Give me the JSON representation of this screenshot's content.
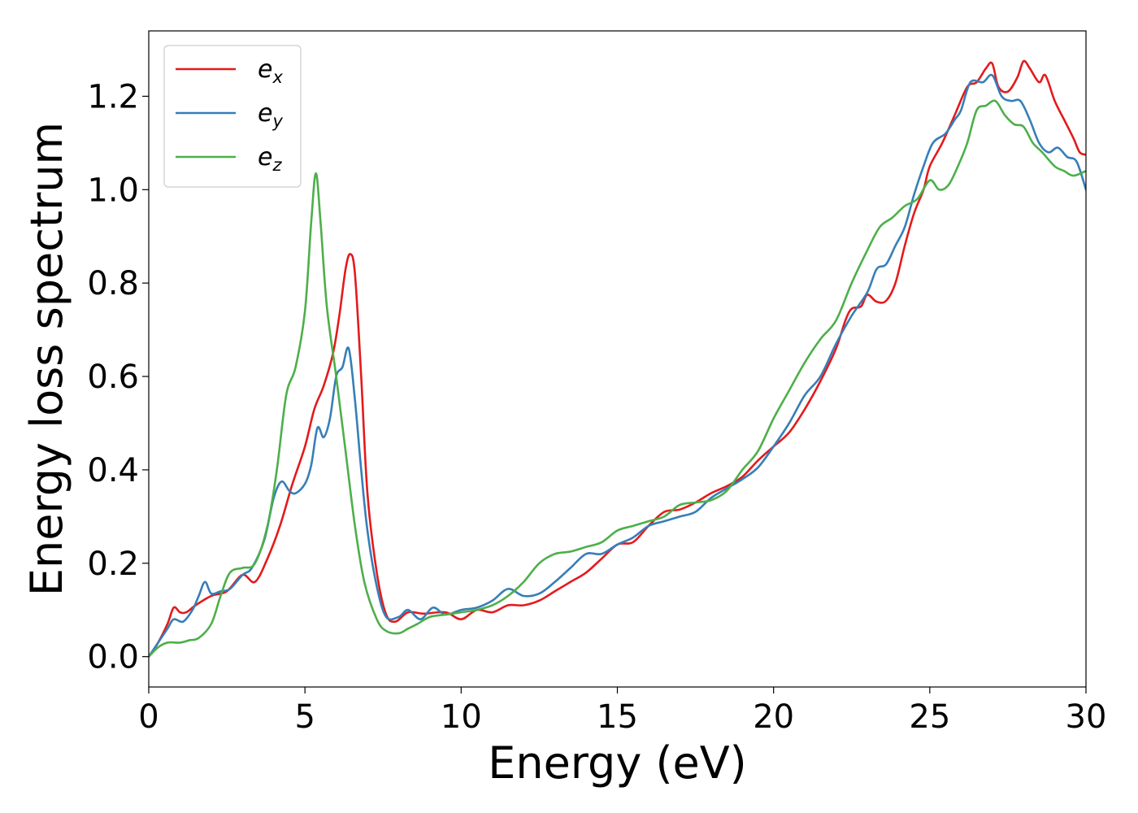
{
  "chart_data": {
    "type": "line",
    "xlabel": "Energy (eV)",
    "ylabel": "Energy loss spectrum",
    "xlim": [
      0,
      30
    ],
    "ylim": [
      -0.065,
      1.34
    ],
    "xticks": [
      0,
      5,
      10,
      15,
      20,
      25,
      30
    ],
    "xtick_labels": [
      "0",
      "5",
      "10",
      "15",
      "20",
      "25",
      "30"
    ],
    "yticks": [
      0.0,
      0.2,
      0.4,
      0.6,
      0.8,
      1.0,
      1.2
    ],
    "ytick_labels": [
      "0.0",
      "0.2",
      "0.4",
      "0.6",
      "0.8",
      "1.0",
      "1.2"
    ],
    "grid": false,
    "legend_position": "top-left",
    "series": [
      {
        "name": "e_x",
        "label_base": "e",
        "label_sub": "x",
        "color": "#e41a1c",
        "points": [
          [
            0,
            0
          ],
          [
            0.3,
            0.03
          ],
          [
            0.6,
            0.07
          ],
          [
            0.8,
            0.105
          ],
          [
            1.0,
            0.095
          ],
          [
            1.2,
            0.095
          ],
          [
            1.5,
            0.11
          ],
          [
            2.0,
            0.13
          ],
          [
            2.5,
            0.14
          ],
          [
            3.0,
            0.175
          ],
          [
            3.4,
            0.16
          ],
          [
            3.8,
            0.21
          ],
          [
            4.2,
            0.28
          ],
          [
            4.6,
            0.37
          ],
          [
            5.0,
            0.45
          ],
          [
            5.3,
            0.53
          ],
          [
            5.6,
            0.58
          ],
          [
            5.9,
            0.65
          ],
          [
            6.1,
            0.73
          ],
          [
            6.3,
            0.83
          ],
          [
            6.45,
            0.862
          ],
          [
            6.6,
            0.82
          ],
          [
            6.8,
            0.6
          ],
          [
            7.0,
            0.35
          ],
          [
            7.3,
            0.18
          ],
          [
            7.6,
            0.09
          ],
          [
            7.9,
            0.075
          ],
          [
            8.3,
            0.095
          ],
          [
            8.8,
            0.092
          ],
          [
            9.5,
            0.095
          ],
          [
            10.0,
            0.08
          ],
          [
            10.5,
            0.1
          ],
          [
            11,
            0.095
          ],
          [
            11.5,
            0.11
          ],
          [
            12,
            0.11
          ],
          [
            12.5,
            0.12
          ],
          [
            13,
            0.14
          ],
          [
            13.5,
            0.16
          ],
          [
            14,
            0.18
          ],
          [
            14.5,
            0.21
          ],
          [
            15,
            0.24
          ],
          [
            15.5,
            0.245
          ],
          [
            16,
            0.28
          ],
          [
            16.5,
            0.31
          ],
          [
            17,
            0.315
          ],
          [
            17.5,
            0.33
          ],
          [
            18,
            0.35
          ],
          [
            18.5,
            0.365
          ],
          [
            19,
            0.385
          ],
          [
            19.5,
            0.42
          ],
          [
            20,
            0.45
          ],
          [
            20.5,
            0.48
          ],
          [
            21,
            0.53
          ],
          [
            21.5,
            0.59
          ],
          [
            22,
            0.66
          ],
          [
            22.3,
            0.72
          ],
          [
            22.5,
            0.745
          ],
          [
            22.8,
            0.75
          ],
          [
            23.0,
            0.775
          ],
          [
            23.3,
            0.76
          ],
          [
            23.6,
            0.762
          ],
          [
            23.9,
            0.8
          ],
          [
            24.2,
            0.88
          ],
          [
            24.5,
            0.95
          ],
          [
            24.8,
            1.0
          ],
          [
            25.0,
            1.05
          ],
          [
            25.4,
            1.1
          ],
          [
            25.8,
            1.16
          ],
          [
            26.2,
            1.22
          ],
          [
            26.5,
            1.23
          ],
          [
            26.8,
            1.26
          ],
          [
            27.0,
            1.27
          ],
          [
            27.2,
            1.22
          ],
          [
            27.5,
            1.21
          ],
          [
            27.8,
            1.24
          ],
          [
            28.0,
            1.275
          ],
          [
            28.2,
            1.26
          ],
          [
            28.5,
            1.23
          ],
          [
            28.7,
            1.245
          ],
          [
            29.0,
            1.19
          ],
          [
            29.3,
            1.15
          ],
          [
            29.6,
            1.11
          ],
          [
            29.8,
            1.08
          ],
          [
            30,
            1.075
          ]
        ]
      },
      {
        "name": "e_y",
        "label_base": "e",
        "label_sub": "y",
        "color": "#377eb8",
        "points": [
          [
            0,
            0
          ],
          [
            0.3,
            0.03
          ],
          [
            0.6,
            0.06
          ],
          [
            0.8,
            0.08
          ],
          [
            1.1,
            0.075
          ],
          [
            1.4,
            0.1
          ],
          [
            1.6,
            0.13
          ],
          [
            1.8,
            0.16
          ],
          [
            2.0,
            0.135
          ],
          [
            2.3,
            0.14
          ],
          [
            2.6,
            0.145
          ],
          [
            3.0,
            0.175
          ],
          [
            3.3,
            0.19
          ],
          [
            3.7,
            0.25
          ],
          [
            4.0,
            0.34
          ],
          [
            4.25,
            0.375
          ],
          [
            4.5,
            0.355
          ],
          [
            4.7,
            0.35
          ],
          [
            5.0,
            0.37
          ],
          [
            5.2,
            0.41
          ],
          [
            5.4,
            0.49
          ],
          [
            5.6,
            0.47
          ],
          [
            5.8,
            0.51
          ],
          [
            6.0,
            0.6
          ],
          [
            6.2,
            0.62
          ],
          [
            6.4,
            0.66
          ],
          [
            6.6,
            0.55
          ],
          [
            6.8,
            0.4
          ],
          [
            7.0,
            0.27
          ],
          [
            7.3,
            0.15
          ],
          [
            7.6,
            0.085
          ],
          [
            8.0,
            0.085
          ],
          [
            8.3,
            0.1
          ],
          [
            8.7,
            0.08
          ],
          [
            9.1,
            0.105
          ],
          [
            9.5,
            0.09
          ],
          [
            10.0,
            0.1
          ],
          [
            10.5,
            0.105
          ],
          [
            11.0,
            0.12
          ],
          [
            11.5,
            0.145
          ],
          [
            12.0,
            0.13
          ],
          [
            12.5,
            0.135
          ],
          [
            13,
            0.16
          ],
          [
            13.5,
            0.19
          ],
          [
            14,
            0.22
          ],
          [
            14.5,
            0.22
          ],
          [
            15,
            0.24
          ],
          [
            15.5,
            0.255
          ],
          [
            16,
            0.28
          ],
          [
            16.5,
            0.29
          ],
          [
            17,
            0.3
          ],
          [
            17.5,
            0.31
          ],
          [
            18,
            0.34
          ],
          [
            18.5,
            0.36
          ],
          [
            19,
            0.38
          ],
          [
            19.5,
            0.405
          ],
          [
            20,
            0.45
          ],
          [
            20.5,
            0.5
          ],
          [
            21,
            0.56
          ],
          [
            21.5,
            0.6
          ],
          [
            22,
            0.67
          ],
          [
            22.5,
            0.73
          ],
          [
            23.0,
            0.78
          ],
          [
            23.3,
            0.83
          ],
          [
            23.6,
            0.84
          ],
          [
            23.9,
            0.88
          ],
          [
            24.2,
            0.92
          ],
          [
            24.5,
            0.99
          ],
          [
            24.8,
            1.05
          ],
          [
            25.1,
            1.1
          ],
          [
            25.5,
            1.12
          ],
          [
            25.8,
            1.15
          ],
          [
            26.0,
            1.17
          ],
          [
            26.3,
            1.23
          ],
          [
            26.7,
            1.23
          ],
          [
            27.0,
            1.245
          ],
          [
            27.3,
            1.2
          ],
          [
            27.6,
            1.19
          ],
          [
            27.9,
            1.19
          ],
          [
            28.2,
            1.15
          ],
          [
            28.5,
            1.1
          ],
          [
            28.8,
            1.08
          ],
          [
            29.1,
            1.09
          ],
          [
            29.4,
            1.07
          ],
          [
            29.7,
            1.06
          ],
          [
            30,
            1.0
          ]
        ]
      },
      {
        "name": "e_z",
        "label_base": "e",
        "label_sub": "z",
        "color": "#4daf4a",
        "points": [
          [
            0,
            0
          ],
          [
            0.3,
            0.02
          ],
          [
            0.6,
            0.03
          ],
          [
            1.0,
            0.03
          ],
          [
            1.3,
            0.035
          ],
          [
            1.6,
            0.04
          ],
          [
            2.0,
            0.07
          ],
          [
            2.3,
            0.13
          ],
          [
            2.6,
            0.18
          ],
          [
            3.0,
            0.19
          ],
          [
            3.4,
            0.2
          ],
          [
            3.8,
            0.28
          ],
          [
            4.1,
            0.4
          ],
          [
            4.4,
            0.56
          ],
          [
            4.7,
            0.62
          ],
          [
            5.0,
            0.74
          ],
          [
            5.2,
            0.93
          ],
          [
            5.35,
            1.035
          ],
          [
            5.5,
            0.93
          ],
          [
            5.7,
            0.75
          ],
          [
            6.0,
            0.6
          ],
          [
            6.3,
            0.44
          ],
          [
            6.6,
            0.28
          ],
          [
            6.9,
            0.16
          ],
          [
            7.3,
            0.08
          ],
          [
            7.6,
            0.055
          ],
          [
            8.0,
            0.05
          ],
          [
            8.3,
            0.06
          ],
          [
            8.6,
            0.07
          ],
          [
            9.0,
            0.085
          ],
          [
            9.5,
            0.09
          ],
          [
            10.0,
            0.095
          ],
          [
            10.5,
            0.1
          ],
          [
            11.0,
            0.11
          ],
          [
            11.5,
            0.13
          ],
          [
            12.0,
            0.16
          ],
          [
            12.5,
            0.2
          ],
          [
            13.0,
            0.22
          ],
          [
            13.5,
            0.225
          ],
          [
            14.0,
            0.235
          ],
          [
            14.5,
            0.245
          ],
          [
            15.0,
            0.27
          ],
          [
            15.5,
            0.28
          ],
          [
            16.0,
            0.29
          ],
          [
            16.5,
            0.3
          ],
          [
            17.0,
            0.325
          ],
          [
            17.5,
            0.33
          ],
          [
            18.0,
            0.335
          ],
          [
            18.5,
            0.355
          ],
          [
            19.0,
            0.4
          ],
          [
            19.5,
            0.44
          ],
          [
            20.0,
            0.51
          ],
          [
            20.5,
            0.57
          ],
          [
            21.0,
            0.63
          ],
          [
            21.5,
            0.68
          ],
          [
            22.0,
            0.72
          ],
          [
            22.5,
            0.8
          ],
          [
            23.0,
            0.87
          ],
          [
            23.4,
            0.92
          ],
          [
            23.8,
            0.94
          ],
          [
            24.2,
            0.965
          ],
          [
            24.6,
            0.98
          ],
          [
            25.0,
            1.02
          ],
          [
            25.3,
            1.0
          ],
          [
            25.6,
            1.01
          ],
          [
            25.9,
            1.05
          ],
          [
            26.2,
            1.1
          ],
          [
            26.5,
            1.17
          ],
          [
            26.8,
            1.18
          ],
          [
            27.1,
            1.19
          ],
          [
            27.4,
            1.16
          ],
          [
            27.7,
            1.14
          ],
          [
            28.0,
            1.135
          ],
          [
            28.3,
            1.1
          ],
          [
            28.6,
            1.08
          ],
          [
            29.0,
            1.05
          ],
          [
            29.3,
            1.04
          ],
          [
            29.6,
            1.03
          ],
          [
            30,
            1.04
          ]
        ]
      }
    ]
  }
}
